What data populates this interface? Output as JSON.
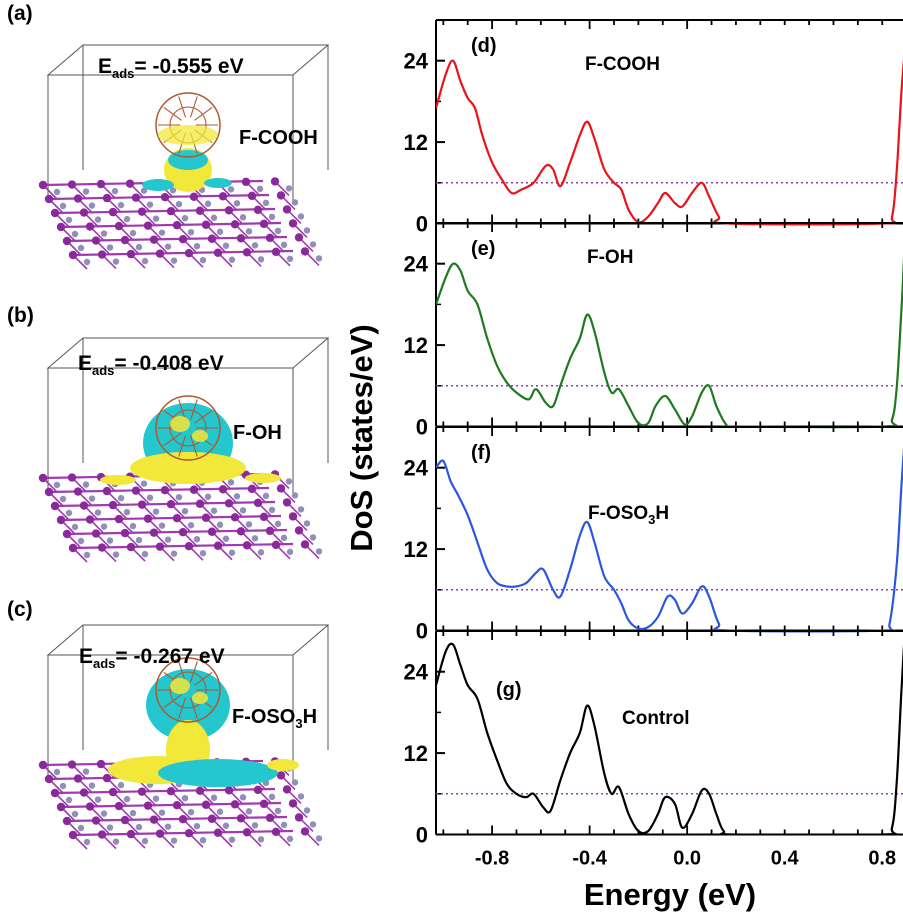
{
  "panels_left": [
    {
      "label": "(a)",
      "eads_prefix": "E",
      "eads_sub": "ads",
      "eads_value": "= -0.555 eV",
      "molecule": "F-COOH"
    },
    {
      "label": "(b)",
      "eads_prefix": "E",
      "eads_sub": "ads",
      "eads_value": "= -0.408 eV",
      "molecule": "F-OH"
    },
    {
      "label": "(c)",
      "eads_prefix": "E",
      "eads_sub": "ads",
      "eads_value": "= -0.267 eV",
      "molecule_main": "F-OSO",
      "molecule_sub": "3",
      "molecule_tail": "H"
    }
  ],
  "colors": {
    "isosurface_yellow": "#f2e83a",
    "isosurface_cyan": "#25c7cf",
    "atom_purple": "#8a2a9a",
    "bond_purple": "#a13ab0",
    "fermi_line": "#8a3fb0"
  },
  "chart_data": {
    "type": "line",
    "xlabel": "Energy (eV)",
    "ylabel": "DoS (states/eV)",
    "xlim": [
      -1.03,
      1.0
    ],
    "ylim": [
      0,
      30
    ],
    "xticks": [
      "-0.8",
      "-0.4",
      "0.0",
      "0.4",
      "0.8"
    ],
    "xtick_values": [
      -0.8,
      -0.4,
      0.0,
      0.4,
      0.8
    ],
    "yticks": [
      "0",
      "12",
      "24"
    ],
    "ytick_values": [
      0,
      12,
      24
    ],
    "reference_line_y": 6,
    "panels": [
      {
        "label": "(d)",
        "name": "F-COOH",
        "color": "#e8141a",
        "points": [
          [
            -1.03,
            17
          ],
          [
            -0.99,
            22
          ],
          [
            -0.96,
            24
          ],
          [
            -0.93,
            21
          ],
          [
            -0.9,
            18.5
          ],
          [
            -0.87,
            17
          ],
          [
            -0.84,
            13
          ],
          [
            -0.8,
            9
          ],
          [
            -0.76,
            6.5
          ],
          [
            -0.72,
            4.5
          ],
          [
            -0.68,
            5
          ],
          [
            -0.63,
            6
          ],
          [
            -0.58,
            8.5
          ],
          [
            -0.55,
            8
          ],
          [
            -0.52,
            5.5
          ],
          [
            -0.48,
            9
          ],
          [
            -0.44,
            13
          ],
          [
            -0.41,
            15
          ],
          [
            -0.38,
            12.5
          ],
          [
            -0.34,
            8
          ],
          [
            -0.3,
            6
          ],
          [
            -0.27,
            5
          ],
          [
            -0.24,
            2
          ],
          [
            -0.2,
            0.2
          ],
          [
            -0.16,
            1
          ],
          [
            -0.12,
            3
          ],
          [
            -0.09,
            4.5
          ],
          [
            -0.05,
            3
          ],
          [
            -0.02,
            2.5
          ],
          [
            0.02,
            4.5
          ],
          [
            0.06,
            6
          ],
          [
            0.09,
            4
          ],
          [
            0.13,
            1
          ],
          [
            0.17,
            0
          ],
          [
            0.8,
            0
          ],
          [
            0.84,
            1
          ],
          [
            0.86,
            8
          ],
          [
            0.88,
            20
          ],
          [
            0.9,
            27
          ],
          [
            0.93,
            26
          ],
          [
            0.95,
            20
          ],
          [
            0.97,
            10
          ],
          [
            1.0,
            5
          ]
        ]
      },
      {
        "label": "(e)",
        "name": "F-OH",
        "color": "#1f7a1f",
        "points": [
          [
            -1.03,
            18
          ],
          [
            -0.99,
            22
          ],
          [
            -0.96,
            24
          ],
          [
            -0.93,
            23
          ],
          [
            -0.9,
            20
          ],
          [
            -0.86,
            18
          ],
          [
            -0.82,
            13
          ],
          [
            -0.78,
            9
          ],
          [
            -0.74,
            6.5
          ],
          [
            -0.7,
            5
          ],
          [
            -0.65,
            4
          ],
          [
            -0.62,
            5.5
          ],
          [
            -0.58,
            3.5
          ],
          [
            -0.55,
            3
          ],
          [
            -0.52,
            6
          ],
          [
            -0.48,
            10
          ],
          [
            -0.44,
            13
          ],
          [
            -0.41,
            16.5
          ],
          [
            -0.38,
            14
          ],
          [
            -0.34,
            8
          ],
          [
            -0.31,
            5
          ],
          [
            -0.28,
            5.5
          ],
          [
            -0.24,
            3
          ],
          [
            -0.2,
            0.5
          ],
          [
            -0.16,
            0.5
          ],
          [
            -0.13,
            3
          ],
          [
            -0.09,
            4.5
          ],
          [
            -0.05,
            2.5
          ],
          [
            -0.01,
            0.3
          ],
          [
            0.02,
            1.5
          ],
          [
            0.06,
            5
          ],
          [
            0.09,
            6
          ],
          [
            0.12,
            3
          ],
          [
            0.16,
            0.3
          ],
          [
            0.2,
            0
          ],
          [
            0.8,
            0
          ],
          [
            0.84,
            1
          ],
          [
            0.86,
            6
          ],
          [
            0.88,
            18
          ],
          [
            0.9,
            30
          ],
          [
            0.93,
            28
          ],
          [
            0.95,
            20
          ],
          [
            0.97,
            10
          ],
          [
            1.0,
            5
          ]
        ]
      },
      {
        "label": "(f)",
        "name": "F-OSO3H",
        "name_main": "F-OSO",
        "name_sub": "3",
        "name_tail": "H",
        "color": "#2b57e0",
        "points": [
          [
            -1.03,
            24
          ],
          [
            -1.0,
            25
          ],
          [
            -0.97,
            22
          ],
          [
            -0.94,
            20
          ],
          [
            -0.9,
            17
          ],
          [
            -0.86,
            13
          ],
          [
            -0.82,
            9
          ],
          [
            -0.78,
            7
          ],
          [
            -0.74,
            6.5
          ],
          [
            -0.7,
            6.5
          ],
          [
            -0.66,
            7
          ],
          [
            -0.62,
            8.5
          ],
          [
            -0.59,
            9
          ],
          [
            -0.55,
            6
          ],
          [
            -0.52,
            5
          ],
          [
            -0.48,
            9
          ],
          [
            -0.44,
            14
          ],
          [
            -0.41,
            16
          ],
          [
            -0.38,
            13
          ],
          [
            -0.34,
            8
          ],
          [
            -0.3,
            6
          ],
          [
            -0.27,
            4
          ],
          [
            -0.24,
            1.5
          ],
          [
            -0.2,
            0.3
          ],
          [
            -0.16,
            0.5
          ],
          [
            -0.12,
            2
          ],
          [
            -0.08,
            5
          ],
          [
            -0.05,
            4.5
          ],
          [
            -0.02,
            2.5
          ],
          [
            0.02,
            4
          ],
          [
            0.06,
            6.5
          ],
          [
            0.09,
            5
          ],
          [
            0.13,
            1
          ],
          [
            0.17,
            0
          ],
          [
            0.8,
            0
          ],
          [
            0.83,
            1
          ],
          [
            0.86,
            10
          ],
          [
            0.88,
            22
          ],
          [
            0.9,
            30
          ],
          [
            0.93,
            28
          ],
          [
            0.95,
            21
          ],
          [
            0.97,
            10
          ],
          [
            1.0,
            5
          ]
        ]
      },
      {
        "label": "(g)",
        "name": "Control",
        "color": "#000000",
        "points": [
          [
            -1.03,
            22
          ],
          [
            -0.99,
            27
          ],
          [
            -0.96,
            28
          ],
          [
            -0.93,
            25
          ],
          [
            -0.9,
            22
          ],
          [
            -0.86,
            20
          ],
          [
            -0.82,
            15
          ],
          [
            -0.78,
            11
          ],
          [
            -0.74,
            7.5
          ],
          [
            -0.7,
            6
          ],
          [
            -0.66,
            5.5
          ],
          [
            -0.63,
            6
          ],
          [
            -0.59,
            4
          ],
          [
            -0.56,
            3.5
          ],
          [
            -0.52,
            8
          ],
          [
            -0.48,
            12
          ],
          [
            -0.44,
            15
          ],
          [
            -0.41,
            19
          ],
          [
            -0.38,
            16
          ],
          [
            -0.34,
            9
          ],
          [
            -0.31,
            6
          ],
          [
            -0.28,
            7
          ],
          [
            -0.24,
            3
          ],
          [
            -0.2,
            0.5
          ],
          [
            -0.16,
            0.5
          ],
          [
            -0.12,
            3
          ],
          [
            -0.09,
            5.5
          ],
          [
            -0.05,
            4.5
          ],
          [
            -0.02,
            1
          ],
          [
            0.02,
            3
          ],
          [
            0.06,
            6.5
          ],
          [
            0.09,
            6
          ],
          [
            0.12,
            3
          ],
          [
            0.15,
            0.5
          ],
          [
            0.2,
            0
          ],
          [
            0.8,
            0
          ],
          [
            0.84,
            1
          ],
          [
            0.86,
            8
          ],
          [
            0.88,
            22
          ],
          [
            0.9,
            32
          ],
          [
            0.93,
            30
          ],
          [
            0.95,
            22
          ],
          [
            0.97,
            10
          ],
          [
            1.0,
            5
          ]
        ]
      }
    ]
  }
}
